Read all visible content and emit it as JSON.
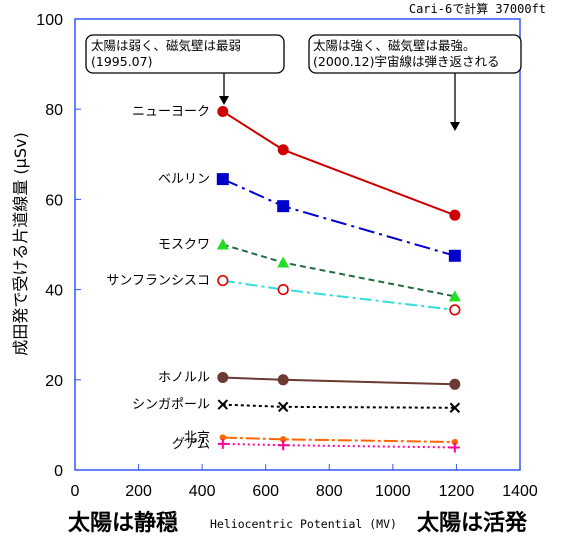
{
  "chart_data": {
    "type": "line",
    "corner_note": "Cari-6で計算 37000ft",
    "ylabel": "成田発で受ける片道線量 (μSv)",
    "xlabel": "Heliocentric Potential (MV)",
    "xlabel_left": "太陽は静穏",
    "xlabel_right": "太陽は活発",
    "xlim": [
      0,
      1400
    ],
    "ylim": [
      0,
      100
    ],
    "x_ticks": [
      "0",
      "200",
      "400",
      "600",
      "800",
      "1000",
      "1200",
      "1400"
    ],
    "y_ticks": [
      "0",
      "20",
      "40",
      "60",
      "80",
      "100"
    ],
    "x": [
      465,
      655,
      1195
    ],
    "annotations": [
      {
        "line1": "太陽は弱く、磁気壁は最弱",
        "line2": "(1995.07)"
      },
      {
        "line1": "太陽は強く、磁気壁は最強。",
        "line2": "(2000.12)宇宙線は弾き返される"
      }
    ],
    "series": [
      {
        "name": "ニューヨーク",
        "values": [
          79.5,
          71,
          56.5
        ],
        "color": "#cc0000",
        "marker": "circle",
        "dash": ""
      },
      {
        "name": "ベルリン",
        "values": [
          64.5,
          58.5,
          47.5
        ],
        "color": "#0000cc",
        "marker": "square",
        "dash": "16,5,3,5"
      },
      {
        "name": "モスクワ",
        "values": [
          50,
          46,
          38.5
        ],
        "color": "#1f6b3f",
        "marker": "triangle",
        "marker_color": "#22dd22",
        "dash": "6,4"
      },
      {
        "name": "サンフランシスコ",
        "values": [
          42,
          40,
          35.5
        ],
        "color": "#33dddd",
        "marker": "open-circle",
        "marker_color": "#dd0000",
        "dash": "12,4,3,4"
      },
      {
        "name": "ホノルル",
        "values": [
          20.5,
          20,
          19
        ],
        "color": "#6b3a32",
        "marker": "circle",
        "dash": ""
      },
      {
        "name": "シンガポール",
        "values": [
          14.5,
          14,
          13.8
        ],
        "color": "#000000",
        "marker": "x",
        "dash": "3,3"
      },
      {
        "name": "北京",
        "values": [
          7.2,
          6.8,
          6.2
        ],
        "color": "#ff6600",
        "marker": "small-circle",
        "dash": "14,3,3,3"
      },
      {
        "name": "グアム",
        "values": [
          5.8,
          5.5,
          5.0
        ],
        "color": "#ff0099",
        "marker": "plus",
        "dash": "2,3"
      }
    ]
  }
}
